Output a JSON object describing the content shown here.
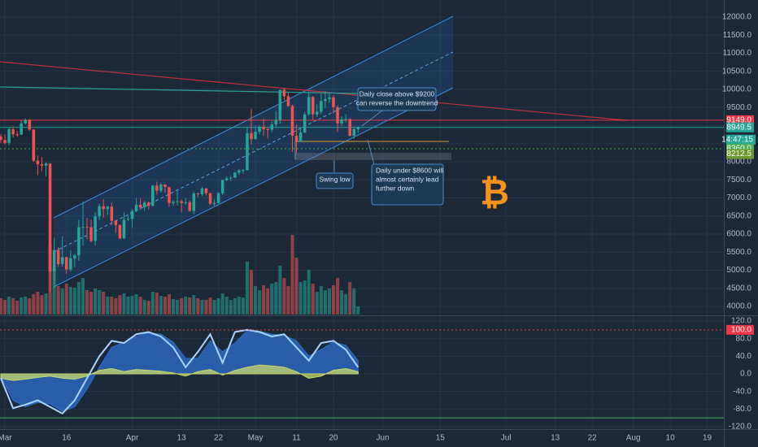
{
  "chart_data": [
    {
      "type": "candlestick",
      "x": [
        -1,
        0,
        1,
        2,
        3,
        4,
        5,
        6,
        7,
        8,
        9,
        10,
        11,
        12,
        13,
        14,
        15,
        16,
        17,
        18,
        19,
        20,
        21,
        22,
        23,
        24,
        25,
        26,
        27,
        28,
        29,
        30,
        31,
        32,
        33,
        34,
        35,
        36,
        37,
        38,
        39,
        40,
        41,
        42,
        43,
        44,
        45,
        46,
        47,
        48,
        49,
        50,
        51,
        52,
        53,
        54,
        55,
        56,
        57,
        58,
        59,
        60,
        61,
        62,
        63,
        64,
        65,
        66,
        67,
        68,
        69,
        70,
        71,
        72,
        73,
        74,
        75,
        76,
        77,
        78,
        79,
        80,
        81,
        82,
        83,
        84,
        85,
        86
      ],
      "open": [
        8700,
        8600,
        8520,
        8900,
        8760,
        8750,
        9060,
        9150,
        8890,
        8030,
        7930,
        7890,
        7950,
        4970,
        5560,
        5170,
        5360,
        5020,
        5330,
        5410,
        6190,
        6200,
        6190,
        5810,
        6490,
        6770,
        6690,
        6760,
        6370,
        6250,
        5880,
        6400,
        6420,
        6640,
        6810,
        6740,
        6870,
        6780,
        7340,
        7200,
        7370,
        7300,
        6860,
        6890,
        6910,
        6860,
        6880,
        6640,
        7120,
        7100,
        7260,
        7130,
        6840,
        6860,
        7130,
        7490,
        7540,
        7560,
        7700,
        7760,
        7770,
        8790,
        8630,
        8830,
        8970,
        8900,
        8890,
        9030,
        9160,
        9990,
        9810,
        9540,
        8720,
        8560,
        8810,
        9310,
        9790,
        9310,
        9380,
        9680,
        9730,
        9780,
        9510,
        9060,
        9170,
        9180,
        8720,
        8900
      ],
      "high": [
        8770,
        8760,
        8960,
        8980,
        8850,
        9140,
        9200,
        9180,
        8900,
        8170,
        8130,
        7980,
        7960,
        5900,
        5640,
        5940,
        5370,
        5550,
        5450,
        6390,
        6900,
        6450,
        6400,
        6600,
        6840,
        6960,
        6790,
        6870,
        6390,
        6270,
        6600,
        6520,
        6690,
        7000,
        7000,
        6920,
        6900,
        7360,
        7450,
        7420,
        7380,
        7310,
        6940,
        7190,
        6960,
        6990,
        6930,
        7170,
        7150,
        7300,
        7270,
        7140,
        6960,
        7160,
        7500,
        7600,
        7600,
        7710,
        7790,
        7800,
        8970,
        9460,
        9000,
        9000,
        9180,
        8950,
        9110,
        9400,
        9990,
        10040,
        9900,
        9580,
        9030,
        8940,
        9380,
        9900,
        9820,
        9590,
        9880,
        9950,
        9900,
        9840,
        9560,
        9260,
        9310,
        9200,
        8970,
        8980
      ],
      "low": [
        8520,
        8480,
        8450,
        8670,
        8690,
        8740,
        9030,
        8850,
        8000,
        7630,
        7740,
        7600,
        4400,
        4600,
        5090,
        5100,
        4900,
        4960,
        5080,
        5260,
        5680,
        5860,
        5770,
        5690,
        6380,
        6460,
        6530,
        6250,
        6030,
        5860,
        5870,
        6370,
        6170,
        6600,
        6670,
        6640,
        6680,
        6760,
        7090,
        7150,
        7140,
        6760,
        6780,
        6790,
        6600,
        6800,
        6620,
        6560,
        7010,
        7060,
        7070,
        6810,
        6780,
        6850,
        7080,
        7460,
        7460,
        7550,
        7640,
        7670,
        7750,
        8470,
        8610,
        8760,
        8720,
        8640,
        8820,
        8960,
        9050,
        9710,
        9520,
        8270,
        8250,
        8540,
        8800,
        9270,
        9140,
        9240,
        9320,
        9480,
        9620,
        9340,
        8820,
        8990,
        9080,
        8700,
        8630,
        8800
      ],
      "close": [
        8600,
        8520,
        8900,
        8760,
        8750,
        9060,
        9150,
        8890,
        8030,
        7930,
        7890,
        7950,
        4970,
        5560,
        5170,
        5360,
        5020,
        5330,
        5410,
        6190,
        6200,
        6190,
        5810,
        6490,
        6770,
        6690,
        6760,
        6370,
        6250,
        5880,
        6400,
        6420,
        6640,
        6810,
        6740,
        6870,
        6780,
        7340,
        7200,
        7370,
        7300,
        6860,
        6890,
        6910,
        6860,
        6880,
        6640,
        7120,
        7100,
        7260,
        7130,
        6840,
        6860,
        7130,
        7490,
        7540,
        7560,
        7700,
        7760,
        7770,
        8790,
        8630,
        8830,
        8970,
        8900,
        8890,
        9030,
        9160,
        9990,
        9810,
        9540,
        8720,
        8560,
        8810,
        9310,
        9790,
        9310,
        9380,
        9680,
        9730,
        9780,
        9510,
        9060,
        9170,
        9180,
        8720,
        8900,
        8949.5
      ],
      "volume": [
        20,
        18,
        22,
        20,
        17,
        21,
        22,
        20,
        25,
        28,
        24,
        26,
        87,
        60,
        35,
        32,
        38,
        34,
        33,
        40,
        45,
        30,
        28,
        32,
        30,
        28,
        22,
        22,
        20,
        24,
        26,
        22,
        23,
        25,
        22,
        18,
        17,
        28,
        27,
        23,
        22,
        25,
        19,
        18,
        20,
        22,
        21,
        24,
        20,
        18,
        18,
        21,
        18,
        20,
        26,
        22,
        18,
        20,
        22,
        21,
        65,
        55,
        35,
        30,
        36,
        32,
        38,
        40,
        60,
        45,
        35,
        98,
        70,
        40,
        42,
        55,
        38,
        28,
        35,
        30,
        32,
        36,
        45,
        30,
        25,
        40,
        32,
        10
      ],
      "up_color": "#26a69a",
      "down_color": "#ef5350",
      "xlim": [
        -1.19,
        175.05
      ],
      "xticks": [
        {
          "value": 0,
          "label": "Mar"
        },
        {
          "value": 15,
          "label": "16"
        },
        {
          "value": 31,
          "label": "Apr"
        },
        {
          "value": 43,
          "label": "13"
        },
        {
          "value": 52,
          "label": "22"
        },
        {
          "value": 61,
          "label": "May"
        },
        {
          "value": 71,
          "label": "11"
        },
        {
          "value": 80,
          "label": "20"
        },
        {
          "value": 92,
          "label": "Jun"
        },
        {
          "value": 106,
          "label": "15"
        },
        {
          "value": 122,
          "label": "Jul"
        },
        {
          "value": 134,
          "label": "13"
        },
        {
          "value": 143,
          "label": "22"
        },
        {
          "value": 153,
          "label": "Aug"
        },
        {
          "value": 162,
          "label": "10"
        },
        {
          "value": 171,
          "label": "19"
        }
      ],
      "ylim": [
        3753,
        12472
      ],
      "yticks": [
        {
          "value": 12000,
          "label": "12000.0"
        },
        {
          "value": 11500,
          "label": "11500.0"
        },
        {
          "value": 11000,
          "label": "11000.0"
        },
        {
          "value": 10500,
          "label": "10500.0"
        },
        {
          "value": 10000,
          "label": "10000.0"
        },
        {
          "value": 9500,
          "label": "9500.0"
        },
        {
          "value": 9000,
          "label": "9000.0"
        },
        {
          "value": 8500,
          "label": "8500.0"
        },
        {
          "value": 8000,
          "label": "8000.0"
        },
        {
          "value": 7500,
          "label": "7500.0"
        },
        {
          "value": 7000,
          "label": "7000.0"
        },
        {
          "value": 6500,
          "label": "6500.0"
        },
        {
          "value": 6000,
          "label": "6000.0"
        },
        {
          "value": 5500,
          "label": "5500.0"
        },
        {
          "value": 5000,
          "label": "5000.0"
        },
        {
          "value": 4500,
          "label": "4500.0"
        },
        {
          "value": 4000,
          "label": "4000.0"
        }
      ],
      "grid": true,
      "price_tags": [
        {
          "value": 9149,
          "label": "9149.0",
          "color": "#f23645",
          "line": "solid"
        },
        {
          "value": 8949.5,
          "label": "8949.5",
          "color": "#26a69a",
          "line": "solid"
        },
        {
          "value": 8360,
          "label": "8360.0",
          "color": "#4caf50",
          "line": "dotted"
        },
        {
          "value": 8212.5,
          "label": "8212.5",
          "color": "#6b9a2f",
          "line": "none"
        }
      ],
      "countdown": "14:47:15",
      "annotations": [
        [
          "Daily close above $9200",
          "can reverse the downtrend"
        ],
        [
          "Swing low"
        ],
        [
          "Daily under $8600 will",
          "almost certainly lead",
          "further down"
        ]
      ],
      "symbol": "₿"
    },
    {
      "type": "oscillator",
      "x": [
        -1,
        2,
        5,
        8,
        11,
        14,
        17,
        20,
        23,
        26,
        29,
        32,
        35,
        38,
        41,
        44,
        47,
        50,
        53,
        56,
        59,
        62,
        65,
        68,
        71,
        74,
        77,
        80,
        83,
        86
      ],
      "series": [
        {
          "color": "#2f6fd0",
          "style": "area",
          "values": [
            -5,
            -60,
            -75,
            -65,
            -68,
            -85,
            -75,
            -35,
            15,
            60,
            72,
            85,
            93,
            90,
            72,
            35,
            35,
            75,
            50,
            70,
            98,
            97,
            90,
            88,
            75,
            40,
            55,
            72,
            65,
            30
          ]
        },
        {
          "color": "#c8d86a",
          "style": "area",
          "values": [
            -10,
            -15,
            -12,
            -8,
            -5,
            -10,
            -12,
            -5,
            8,
            12,
            5,
            10,
            8,
            6,
            2,
            -5,
            5,
            10,
            -3,
            8,
            15,
            20,
            18,
            15,
            5,
            -10,
            -5,
            8,
            12,
            5
          ]
        },
        {
          "color": "#a9d4ff",
          "style": "line",
          "values": [
            -10,
            -78,
            -70,
            -60,
            -75,
            -90,
            -60,
            -10,
            40,
            75,
            70,
            90,
            95,
            85,
            60,
            15,
            50,
            90,
            25,
            95,
            100,
            95,
            85,
            90,
            60,
            30,
            70,
            75,
            55,
            15
          ]
        }
      ],
      "ylim": [
        -125.5,
        129.2
      ],
      "yticks": [
        {
          "value": 120,
          "label": "120.0"
        },
        {
          "value": 80,
          "label": "80.0"
        },
        {
          "value": 40,
          "label": "40.0"
        },
        {
          "value": 0,
          "label": "0.0"
        },
        {
          "value": -40,
          "label": "-40.0"
        },
        {
          "value": -80,
          "label": "-80.0"
        },
        {
          "value": -120,
          "label": "-120.0"
        }
      ],
      "level_tag": {
        "value": 100,
        "label": "100.0",
        "color": "#f23645"
      },
      "lower_level": {
        "value": -100,
        "color": "#3fa34d"
      }
    }
  ]
}
